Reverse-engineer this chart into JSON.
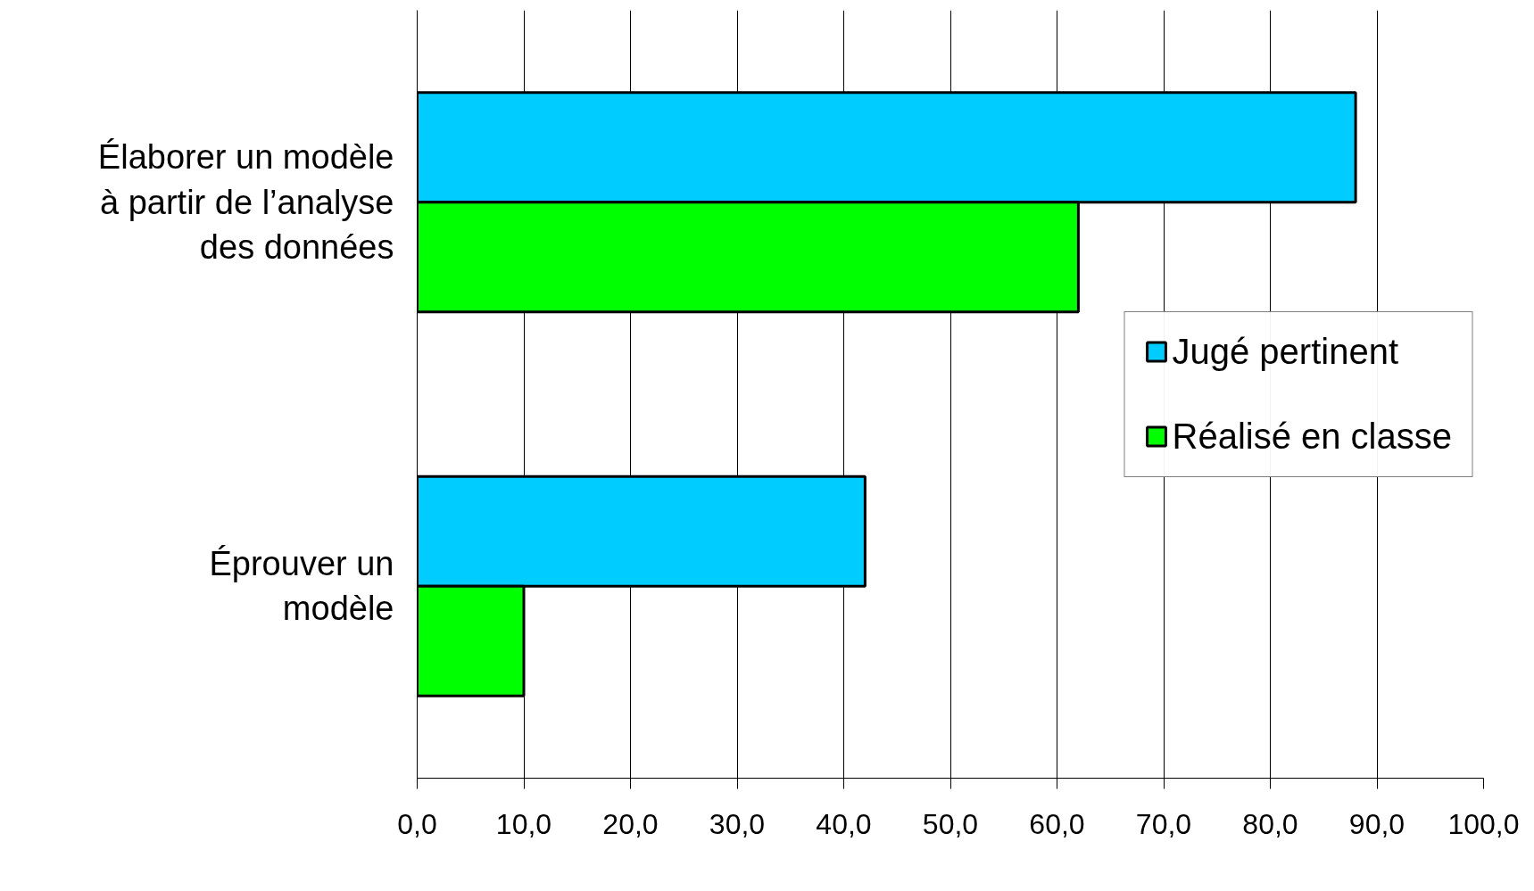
{
  "chart_data": {
    "type": "bar",
    "orientation": "horizontal",
    "categories": [
      "Élaborer un modèle\nà partir de l’analyse\ndes données",
      "Éprouver un\nmodèle"
    ],
    "series": [
      {
        "name": "Jugé pertinent",
        "color": "#00ccff",
        "values": [
          88,
          42
        ]
      },
      {
        "name": "Réalisé en classe",
        "color": "#00ff00",
        "values": [
          62,
          10
        ]
      }
    ],
    "xlim": [
      0,
      100
    ],
    "xticks": [
      {
        "value": 0,
        "label": "0,0"
      },
      {
        "value": 10,
        "label": "10,0"
      },
      {
        "value": 20,
        "label": "20,0"
      },
      {
        "value": 30,
        "label": "30,0"
      },
      {
        "value": 40,
        "label": "40,0"
      },
      {
        "value": 50,
        "label": "50,0"
      },
      {
        "value": 60,
        "label": "60,0"
      },
      {
        "value": 70,
        "label": "70,0"
      },
      {
        "value": 80,
        "label": "80,0"
      },
      {
        "value": 90,
        "label": "90,0"
      },
      {
        "value": 100,
        "label": "100,0"
      }
    ],
    "grid": "x",
    "legend": "right"
  }
}
